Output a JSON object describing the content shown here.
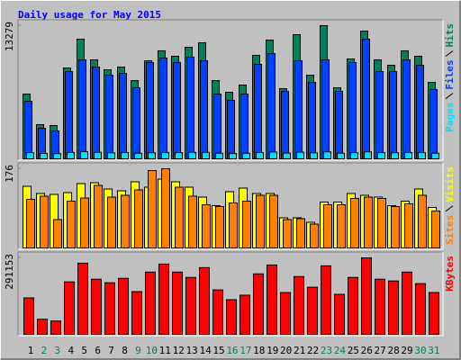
{
  "chart_data": {
    "type": "bar",
    "title": "Daily usage for May 2015",
    "categories": [
      "1",
      "2",
      "3",
      "4",
      "5",
      "6",
      "7",
      "8",
      "9",
      "10",
      "11",
      "12",
      "13",
      "14",
      "15",
      "16",
      "17",
      "18",
      "19",
      "20",
      "21",
      "22",
      "23",
      "24",
      "25",
      "26",
      "27",
      "28",
      "29",
      "30",
      "31"
    ],
    "category_colors": [
      "#000000",
      "#00805c",
      "#00805c",
      "#000000",
      "#000000",
      "#000000",
      "#000000",
      "#000000",
      "#00805c",
      "#00805c",
      "#000000",
      "#000000",
      "#000000",
      "#000000",
      "#000000",
      "#00805c",
      "#00805c",
      "#000000",
      "#000000",
      "#000000",
      "#000000",
      "#000000",
      "#00805c",
      "#00805c",
      "#000000",
      "#000000",
      "#000000",
      "#000000",
      "#000000",
      "#00805c",
      "#00805c"
    ],
    "panels": [
      {
        "ylim": [
          0,
          13279
        ],
        "yticks": [
          13279
        ],
        "series": [
          {
            "name": "Hits",
            "color": "#00805c",
            "values": [
              6460,
              3410,
              3320,
              9060,
              11930,
              9870,
              8880,
              9150,
              7800,
              9780,
              10770,
              10230,
              11120,
              11570,
              7800,
              6640,
              7360,
              10320,
              11840,
              7000,
              12380,
              8340,
              13279,
              7090,
              9960,
              12740,
              9870,
              9330,
              10770,
              10230,
              7620
            ]
          },
          {
            "name": "Files",
            "color": "#0040ff",
            "values": [
              5740,
              3050,
              2780,
              8700,
              9870,
              9150,
              8340,
              8520,
              7090,
              9600,
              10050,
              9600,
              10140,
              9780,
              6460,
              5830,
              6460,
              9420,
              10490,
              6730,
              9780,
              7620,
              9870,
              6730,
              9600,
              11930,
              8700,
              8700,
              9870,
              9330,
              6910
            ]
          },
          {
            "name": "Pages",
            "color": "#00e0ff",
            "values": [
              620,
              540,
              520,
              640,
              720,
              650,
              600,
              630,
              560,
              610,
              640,
              620,
              650,
              640,
              560,
              530,
              560,
              630,
              680,
              570,
              660,
              600,
              700,
              560,
              620,
              700,
              620,
              610,
              640,
              620,
              560
            ]
          }
        ]
      },
      {
        "ylim": [
          0,
          176
        ],
        "yticks": [
          176
        ],
        "series": [
          {
            "name": "Visits",
            "color": "#ffff00",
            "values": [
              137,
              121,
              119,
              123,
              143,
              145,
              131,
              127,
              147,
              135,
              153,
              147,
              135,
              113,
              94,
              125,
              133,
              121,
              121,
              67,
              67,
              57,
              102,
              102,
              121,
              117,
              113,
              94,
              104,
              131,
              90
            ]
          },
          {
            "name": "Sites",
            "color": "#ff8000",
            "values": [
              108,
              115,
              63,
              104,
              111,
              139,
              113,
              117,
              129,
              172,
              176,
              135,
              115,
              96,
              92,
              100,
              104,
              117,
              117,
              63,
              65,
              53,
              96,
              96,
              110,
              113,
              110,
              92,
              98,
              117,
              82
            ]
          }
        ]
      },
      {
        "ylim": [
          0,
          291153
        ],
        "yticks": [
          291153
        ],
        "series": [
          {
            "name": "KBytes",
            "color": "#ff0000",
            "values": [
              138826,
              57562,
              50790,
              199774,
              270880,
              209932,
              196388,
              213318,
              162528,
              237020,
              267494,
              237020,
              216704,
              253950,
              169300,
              132054,
              148984,
              230248,
              264108,
              159142,
              220090,
              179458,
              260722,
              152370,
              216704,
              291153,
              209932,
              203160,
              237020,
              193002,
              159142
            ]
          }
        ]
      }
    ]
  }
}
